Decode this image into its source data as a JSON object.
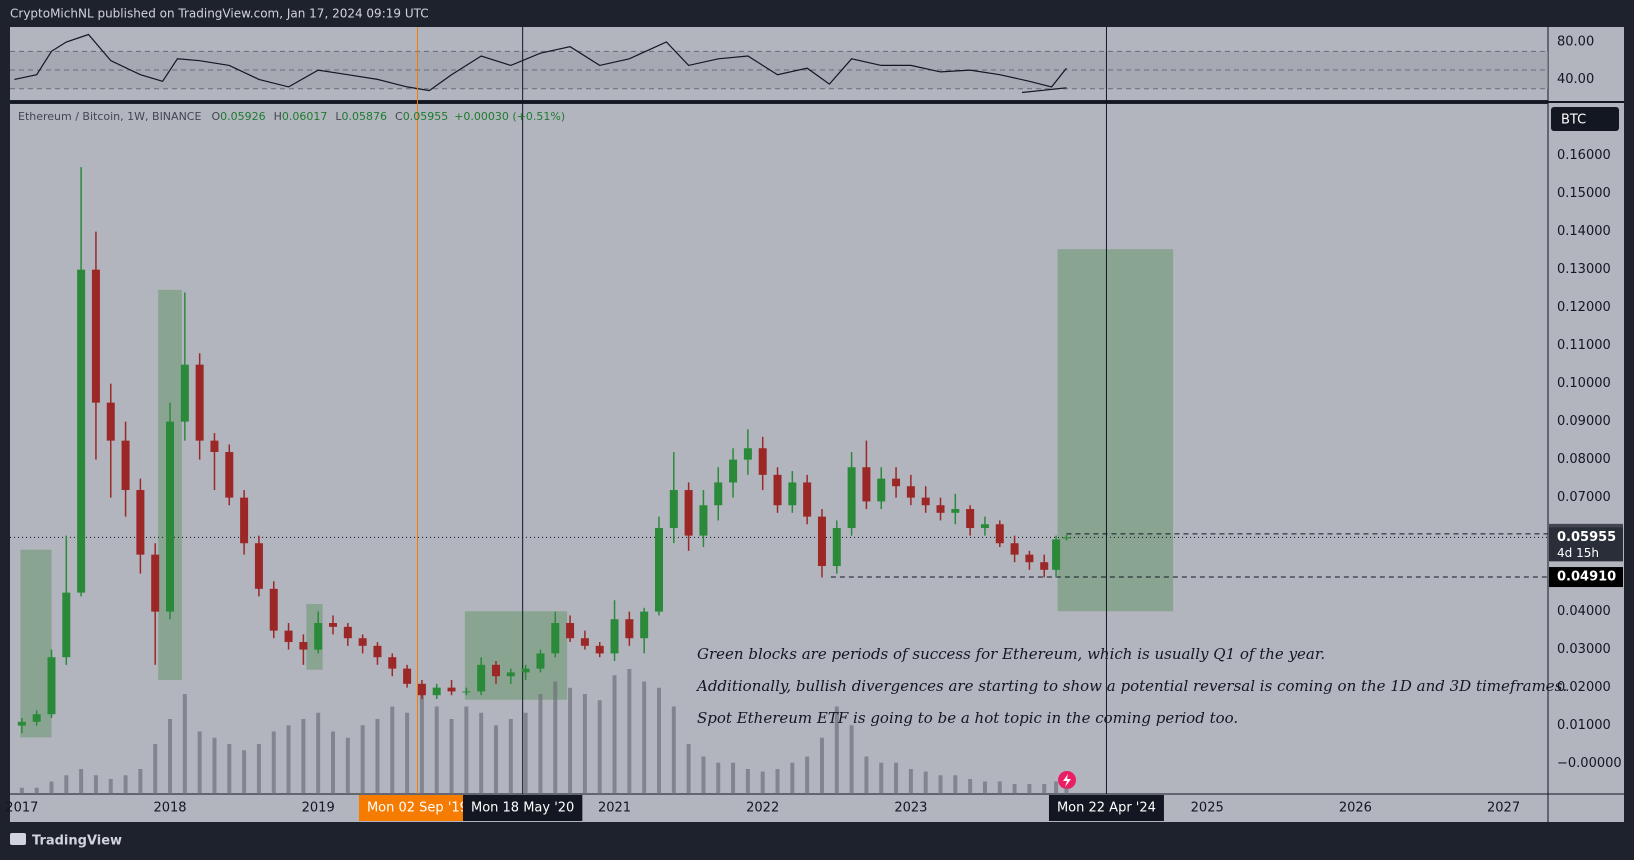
{
  "header": "CryptoMichNL published on TradingView.com, Jan 17, 2024 09:19 UTC",
  "brand": "TradingView",
  "chart_data": {
    "type": "candlestick",
    "symbol": "Ethereum / Bitcoin, 1W, BINANCE",
    "ohlc": [
      {
        "label": "O",
        "value": 0.05926
      },
      {
        "label": "H",
        "value": 0.06017
      },
      {
        "label": "L",
        "value": 0.05876
      },
      {
        "label": "C",
        "value": 0.05955
      }
    ],
    "change": "+0.00030 (+0.51%)",
    "unit": "BTC",
    "up_color": "#2a8a3a",
    "down_color": "#9c2727",
    "xlim": [
      2016.92,
      2027.3
    ],
    "xticks": [
      2017,
      2018,
      2019,
      2021,
      2022,
      2023,
      2025,
      2026,
      2027
    ],
    "ylim": [
      -0.008,
      0.1736
    ],
    "yticks": [
      {
        "value": 0.16,
        "label": "0.16000"
      },
      {
        "value": 0.15,
        "label": "0.15000"
      },
      {
        "value": 0.14,
        "label": "0.14000"
      },
      {
        "value": 0.13,
        "label": "0.13000"
      },
      {
        "value": 0.12,
        "label": "0.12000"
      },
      {
        "value": 0.11,
        "label": "0.11000"
      },
      {
        "value": 0.1,
        "label": "0.10000"
      },
      {
        "value": 0.09,
        "label": "0.09000"
      },
      {
        "value": 0.08,
        "label": "0.08000"
      },
      {
        "value": 0.07,
        "label": "0.07000"
      },
      {
        "value": 0.04,
        "label": "0.04000"
      },
      {
        "value": 0.03,
        "label": "0.03000"
      },
      {
        "value": 0.02,
        "label": "0.02000"
      },
      {
        "value": 0.01,
        "label": "0.01000"
      },
      {
        "value": 0,
        "label": "−0.00000"
      }
    ],
    "x": [
      2017.0,
      2017.1,
      2017.2,
      2017.3,
      2017.4,
      2017.5,
      2017.6,
      2017.7,
      2017.8,
      2017.9,
      2018.0,
      2018.1,
      2018.2,
      2018.3,
      2018.4,
      2018.5,
      2018.6,
      2018.7,
      2018.8,
      2018.9,
      2019.0,
      2019.1,
      2019.2,
      2019.3,
      2019.4,
      2019.5,
      2019.6,
      2019.7,
      2019.8,
      2019.9,
      2020.0,
      2020.1,
      2020.2,
      2020.3,
      2020.4,
      2020.5,
      2020.6,
      2020.7,
      2020.8,
      2020.9,
      2021.0,
      2021.1,
      2021.2,
      2021.3,
      2021.4,
      2021.5,
      2021.6,
      2021.7,
      2021.8,
      2021.9,
      2022.0,
      2022.1,
      2022.2,
      2022.3,
      2022.4,
      2022.5,
      2022.6,
      2022.7,
      2022.8,
      2022.9,
      2023.0,
      2023.1,
      2023.2,
      2023.3,
      2023.4,
      2023.5,
      2023.6,
      2023.7,
      2023.8,
      2023.9,
      2023.98,
      2024.05
    ],
    "open": [
      0.01,
      0.011,
      0.013,
      0.028,
      0.045,
      0.13,
      0.095,
      0.085,
      0.072,
      0.055,
      0.04,
      0.09,
      0.105,
      0.085,
      0.082,
      0.07,
      0.058,
      0.046,
      0.035,
      0.032,
      0.03,
      0.037,
      0.036,
      0.033,
      0.031,
      0.028,
      0.025,
      0.021,
      0.018,
      0.02,
      0.019,
      0.019,
      0.026,
      0.023,
      0.024,
      0.025,
      0.029,
      0.037,
      0.033,
      0.031,
      0.029,
      0.038,
      0.033,
      0.04,
      0.062,
      0.072,
      0.06,
      0.068,
      0.074,
      0.08,
      0.083,
      0.076,
      0.068,
      0.074,
      0.065,
      0.052,
      0.062,
      0.078,
      0.069,
      0.075,
      0.073,
      0.07,
      0.068,
      0.066,
      0.067,
      0.062,
      0.063,
      0.058,
      0.055,
      0.053,
      0.051,
      0.05926
    ],
    "high": [
      0.012,
      0.014,
      0.03,
      0.06,
      0.157,
      0.14,
      0.1,
      0.09,
      0.075,
      0.058,
      0.095,
      0.124,
      0.108,
      0.087,
      0.084,
      0.072,
      0.06,
      0.048,
      0.037,
      0.034,
      0.04,
      0.039,
      0.037,
      0.034,
      0.032,
      0.029,
      0.026,
      0.022,
      0.021,
      0.022,
      0.02,
      0.028,
      0.027,
      0.025,
      0.026,
      0.03,
      0.04,
      0.039,
      0.035,
      0.032,
      0.043,
      0.04,
      0.041,
      0.065,
      0.082,
      0.074,
      0.072,
      0.078,
      0.083,
      0.088,
      0.086,
      0.078,
      0.077,
      0.076,
      0.067,
      0.064,
      0.082,
      0.085,
      0.078,
      0.078,
      0.076,
      0.073,
      0.07,
      0.071,
      0.068,
      0.065,
      0.064,
      0.06,
      0.056,
      0.055,
      0.06,
      0.06017
    ],
    "low": [
      0.008,
      0.01,
      0.012,
      0.026,
      0.044,
      0.08,
      0.07,
      0.065,
      0.05,
      0.026,
      0.038,
      0.085,
      0.08,
      0.072,
      0.068,
      0.055,
      0.044,
      0.033,
      0.03,
      0.026,
      0.029,
      0.034,
      0.031,
      0.029,
      0.026,
      0.023,
      0.02,
      0.017,
      0.017,
      0.018,
      0.018,
      0.018,
      0.021,
      0.021,
      0.022,
      0.024,
      0.028,
      0.032,
      0.03,
      0.028,
      0.027,
      0.031,
      0.029,
      0.039,
      0.058,
      0.056,
      0.057,
      0.064,
      0.07,
      0.076,
      0.072,
      0.066,
      0.066,
      0.063,
      0.049,
      0.05,
      0.06,
      0.067,
      0.067,
      0.07,
      0.068,
      0.066,
      0.064,
      0.063,
      0.06,
      0.06,
      0.057,
      0.053,
      0.051,
      0.049,
      0.049,
      0.05876
    ],
    "close": [
      0.011,
      0.013,
      0.028,
      0.045,
      0.13,
      0.095,
      0.085,
      0.072,
      0.055,
      0.04,
      0.09,
      0.105,
      0.085,
      0.082,
      0.07,
      0.058,
      0.046,
      0.035,
      0.032,
      0.03,
      0.037,
      0.036,
      0.033,
      0.031,
      0.028,
      0.025,
      0.021,
      0.018,
      0.02,
      0.019,
      0.019,
      0.026,
      0.023,
      0.024,
      0.025,
      0.029,
      0.037,
      0.033,
      0.031,
      0.029,
      0.038,
      0.033,
      0.04,
      0.062,
      0.072,
      0.06,
      0.068,
      0.074,
      0.08,
      0.083,
      0.076,
      0.068,
      0.074,
      0.065,
      0.052,
      0.062,
      0.078,
      0.069,
      0.075,
      0.073,
      0.07,
      0.068,
      0.066,
      0.067,
      0.062,
      0.063,
      0.058,
      0.055,
      0.053,
      0.051,
      0.059,
      0.05955
    ],
    "volume": [
      5,
      5,
      10,
      15,
      20,
      15,
      12,
      15,
      20,
      40,
      60,
      80,
      50,
      45,
      40,
      35,
      40,
      50,
      55,
      60,
      65,
      50,
      45,
      55,
      60,
      70,
      65,
      80,
      70,
      60,
      70,
      65,
      55,
      60,
      65,
      80,
      90,
      85,
      80,
      75,
      95,
      100,
      90,
      85,
      70,
      40,
      30,
      25,
      25,
      20,
      18,
      20,
      25,
      30,
      45,
      70,
      55,
      30,
      25,
      25,
      20,
      18,
      15,
      15,
      12,
      10,
      10,
      8,
      8,
      8,
      10,
      5
    ],
    "zones": [
      {
        "x": [
          2016.99,
          2017.2
        ],
        "y": [
          0.0069,
          0.0563
        ]
      },
      {
        "x": [
          2017.92,
          2018.08
        ],
        "y": [
          0.022,
          0.1247
        ]
      },
      {
        "x": [
          2018.92,
          2019.03
        ],
        "y": [
          0.0247,
          0.042
        ]
      },
      {
        "x": [
          2019.99,
          2020.68
        ],
        "y": [
          0.0168,
          0.0401
        ]
      },
      {
        "x": [
          2023.99,
          2024.77
        ],
        "y": [
          0.0401,
          0.1354
        ]
      }
    ],
    "zone_color": "#6f9a74",
    "vlines": [
      {
        "x": 2019.67,
        "label": "Mon 02 Sep '19",
        "color": "#f57c00"
      },
      {
        "x": 2020.38,
        "label": "Mon 18 May '20",
        "color": "#131722"
      },
      {
        "x": 2024.32,
        "label": "Mon 22 Apr '24",
        "color": "#131722"
      }
    ],
    "price_lines": [
      {
        "value": 0.06047,
        "style": "dashed",
        "from": 2024.05
      },
      {
        "value": 0.05955,
        "style": "dotted",
        "countdown": "4d 15h"
      },
      {
        "value": 0.0491,
        "label": "0.04910",
        "style": "dashed",
        "from": 2022.46
      }
    ],
    "annotations": [
      "Green blocks are periods of success for Ethereum, which is usually Q1 of the year.",
      "Additionally, bullish divergences are starting to show a potential reversal is coming on the 1D and 3D timeframes.",
      "Spot Ethereum ETF is going to be a hot topic in the coming period too."
    ],
    "rsi": {
      "x": [
        2016.95,
        2017.1,
        2017.2,
        2017.3,
        2017.45,
        2017.6,
        2017.8,
        2017.95,
        2018.05,
        2018.2,
        2018.4,
        2018.6,
        2018.8,
        2019.0,
        2019.2,
        2019.4,
        2019.6,
        2019.75,
        2019.9,
        2020.1,
        2020.3,
        2020.5,
        2020.7,
        2020.9,
        2021.1,
        2021.35,
        2021.5,
        2021.7,
        2021.9,
        2022.1,
        2022.3,
        2022.45,
        2022.6,
        2022.8,
        2023.0,
        2023.2,
        2023.4,
        2023.6,
        2023.8,
        2023.95,
        2024.05
      ],
      "values": [
        40,
        45,
        70,
        80,
        88,
        60,
        45,
        38,
        62,
        60,
        55,
        40,
        32,
        50,
        45,
        40,
        32,
        28,
        45,
        65,
        55,
        68,
        75,
        55,
        62,
        80,
        55,
        62,
        65,
        45,
        52,
        35,
        62,
        55,
        55,
        48,
        50,
        45,
        38,
        32,
        52
      ],
      "ylim": [
        18,
        96
      ],
      "yticks": [
        {
          "value": 80,
          "label": "80.00"
        },
        {
          "value": 40,
          "label": "40.00"
        }
      ],
      "bands": [
        30,
        50,
        70
      ],
      "divergence": {
        "x": [
          2023.75,
          2024.05
        ],
        "y": [
          26,
          31
        ]
      }
    }
  }
}
